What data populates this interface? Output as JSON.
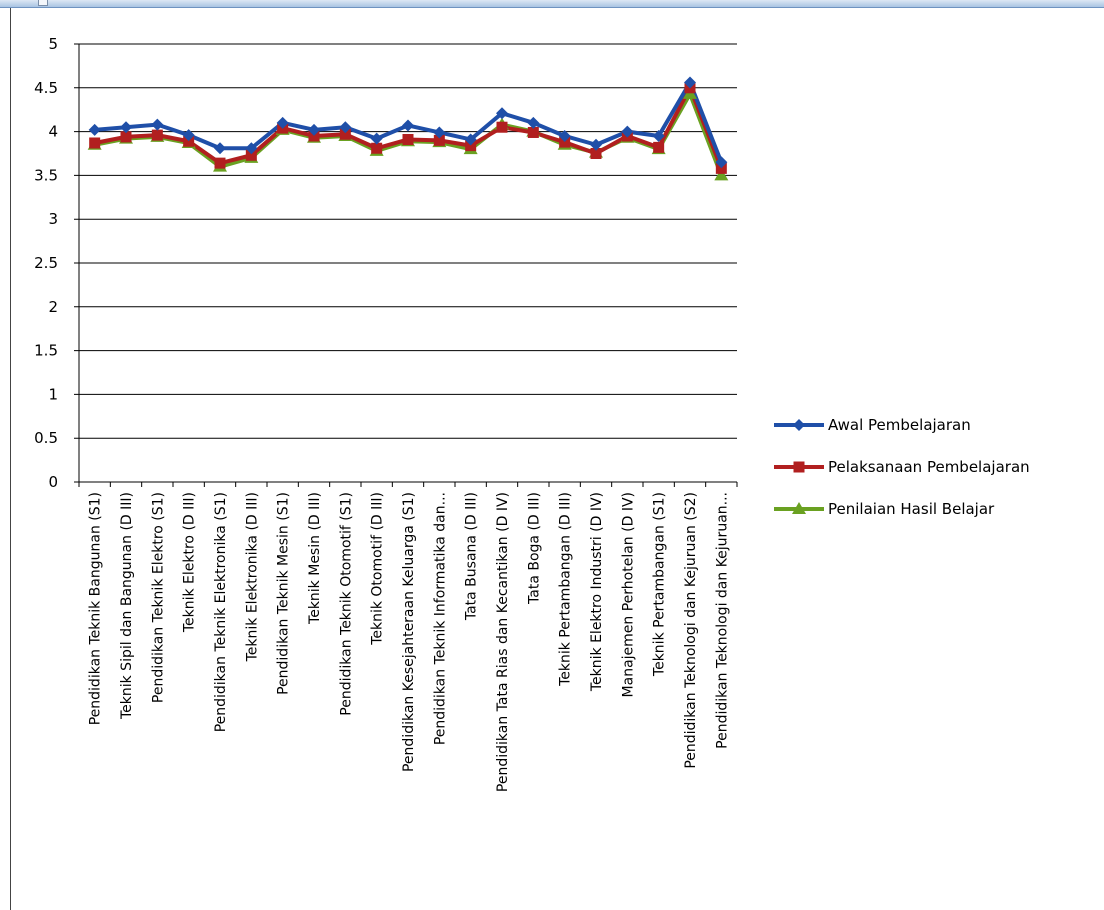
{
  "colors": {
    "awal": "#1f4fa8",
    "pelaksanaan": "#b11f1f",
    "penilaian": "#6aa121",
    "grid": "#000000",
    "frame": "#6f93c0"
  },
  "chart_data": {
    "type": "line",
    "title": "",
    "xlabel": "",
    "ylabel": "",
    "ylim": [
      0,
      5
    ],
    "y_ticks": [
      "0",
      "0.5",
      "1",
      "1.5",
      "2",
      "2.5",
      "3",
      "3.5",
      "4",
      "4.5",
      "5"
    ],
    "grid": true,
    "legend_position": "right",
    "categories": [
      "Pendidikan Teknik Bangunan  (S1)",
      "Teknik Sipil dan Bangunan  (D III)",
      "Pendidikan Teknik Elektro  (S1)",
      "Teknik Elektro  (D III)",
      "Pendidikan Teknik Elektronika  (S1)",
      "Teknik Elektronika  (D III)",
      "Pendidikan Teknik Mesin  (S1)",
      "Teknik Mesin  (D III)",
      "Pendidikan Teknik Otomotif  (S1)",
      "Teknik Otomotif  (D III)",
      "Pendidikan Kesejahteraan  Keluarga  (S1)",
      "Pendidikan Teknik Informatika  dan...",
      "Tata Busana  (D III)",
      "Pendidikan Tata  Rias dan Kecantikan  (D IV)",
      "Tata Boga  (D III)",
      "Teknik Pertambangan  (D III)",
      "Teknik Elektro  Industri  (D IV)",
      "Manajemen Perhotelan  (D IV)",
      "Teknik Pertambangan  (S1)",
      "Pendidikan Teknologi dan Kejuruan  (S2)",
      "Pendidikan Teknologi dan Kejuruan..."
    ],
    "series": [
      {
        "name": "Awal Pembelajaran",
        "color": "#1f4fa8",
        "marker": "diamond",
        "values": [
          4.02,
          4.05,
          4.08,
          3.96,
          3.81,
          3.81,
          4.1,
          4.02,
          4.05,
          3.92,
          4.07,
          3.99,
          3.91,
          4.21,
          4.1,
          3.95,
          3.85,
          4.0,
          3.95,
          4.56,
          3.65
        ]
      },
      {
        "name": "Pelaksanaan Pembelajaran",
        "color": "#b11f1f",
        "marker": "square",
        "values": [
          3.87,
          3.94,
          3.96,
          3.89,
          3.64,
          3.73,
          4.04,
          3.95,
          3.97,
          3.81,
          3.91,
          3.9,
          3.84,
          4.05,
          3.99,
          3.88,
          3.75,
          3.95,
          3.82,
          4.5,
          3.58
        ]
      },
      {
        "name": "Penilaian Hasil  Belajar",
        "color": "#6aa121",
        "marker": "triangle",
        "values": [
          3.85,
          3.92,
          3.94,
          3.87,
          3.6,
          3.7,
          4.02,
          3.93,
          3.95,
          3.78,
          3.89,
          3.88,
          3.8,
          4.08,
          4.0,
          3.85,
          3.76,
          3.93,
          3.8,
          4.43,
          3.5
        ]
      }
    ]
  }
}
